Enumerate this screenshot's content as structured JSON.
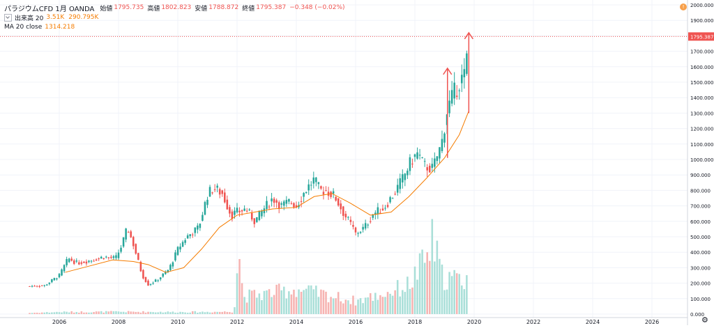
{
  "legend": {
    "title": "パラジウムCFD 1月 OANDA",
    "open_label": "始値",
    "open": "1795.735",
    "high_label": "高値",
    "high": "1802.823",
    "low_label": "安値",
    "low": "1788.872",
    "close_label": "終値",
    "close": "1795.387",
    "change": "−0.348 (−0.02%)",
    "volume_label": "出来高 20",
    "volume_value": "3.51K",
    "volume_ma": "290.795K",
    "ma_label": "MA 20 close",
    "ma_value": "1314.218"
  },
  "badges": {
    "info": "!"
  },
  "last_price_label": "1795.387",
  "colors": {
    "up": "#26a69a",
    "down": "#ef5350",
    "ma": "#f57c00",
    "vol_up": "#a9dfd8",
    "vol_down": "#f6b3b1",
    "arrow": "#ef5350",
    "grid": "#f0f3fa",
    "axis_text": "#131722"
  },
  "chart_data": {
    "type": "candlestick",
    "y_axis": {
      "min": 0,
      "max": 2000,
      "ticks": [
        "2000.000",
        "1900.000",
        "1800.000",
        "1700.000",
        "1600.000",
        "1500.000",
        "1400.000",
        "1300.000",
        "1200.000",
        "1100.000",
        "1000.000",
        "900.000",
        "800.000",
        "700.000",
        "600.000",
        "500.000",
        "400.000",
        "300.000",
        "200.000",
        "100.000",
        "0.000"
      ]
    },
    "x_axis": {
      "min": 2004,
      "max": 2027.2,
      "ticks": [
        "2006",
        "2008",
        "2010",
        "2012",
        "2014",
        "2016",
        "2018",
        "2020",
        "2022",
        "2024",
        "2026"
      ]
    },
    "price_anchors": [
      [
        2005.0,
        180
      ],
      [
        2005.5,
        185
      ],
      [
        2006.0,
        250
      ],
      [
        2006.3,
        360
      ],
      [
        2006.6,
        330
      ],
      [
        2007.0,
        345
      ],
      [
        2007.5,
        370
      ],
      [
        2007.9,
        360
      ],
      [
        2008.1,
        440
      ],
      [
        2008.3,
        560
      ],
      [
        2008.5,
        450
      ],
      [
        2008.8,
        250
      ],
      [
        2009.0,
        190
      ],
      [
        2009.3,
        220
      ],
      [
        2009.7,
        290
      ],
      [
        2010.0,
        420
      ],
      [
        2010.3,
        500
      ],
      [
        2010.7,
        560
      ],
      [
        2011.0,
        770
      ],
      [
        2011.2,
        820
      ],
      [
        2011.5,
        780
      ],
      [
        2011.8,
        640
      ],
      [
        2012.0,
        660
      ],
      [
        2012.3,
        680
      ],
      [
        2012.6,
        600
      ],
      [
        2012.9,
        680
      ],
      [
        2013.2,
        750
      ],
      [
        2013.5,
        700
      ],
      [
        2013.8,
        730
      ],
      [
        2014.0,
        700
      ],
      [
        2014.3,
        800
      ],
      [
        2014.6,
        870
      ],
      [
        2014.8,
        800
      ],
      [
        2015.0,
        800
      ],
      [
        2015.3,
        760
      ],
      [
        2015.6,
        650
      ],
      [
        2015.9,
        560
      ],
      [
        2016.0,
        520
      ],
      [
        2016.3,
        560
      ],
      [
        2016.6,
        650
      ],
      [
        2016.9,
        680
      ],
      [
        2017.0,
        700
      ],
      [
        2017.3,
        780
      ],
      [
        2017.6,
        880
      ],
      [
        2017.9,
        1000
      ],
      [
        2018.1,
        1040
      ],
      [
        2018.3,
        960
      ],
      [
        2018.6,
        940
      ],
      [
        2018.9,
        1100
      ],
      [
        2019.1,
        1330
      ],
      [
        2019.3,
        1420
      ],
      [
        2019.5,
        1500
      ],
      [
        2019.7,
        1550
      ],
      [
        2019.82,
        1790
      ]
    ],
    "ma20_anchors": [
      [
        2006.2,
        270
      ],
      [
        2007.0,
        310
      ],
      [
        2007.8,
        350
      ],
      [
        2008.5,
        340
      ],
      [
        2009.0,
        320
      ],
      [
        2009.6,
        270
      ],
      [
        2010.2,
        300
      ],
      [
        2010.8,
        420
      ],
      [
        2011.4,
        560
      ],
      [
        2012.0,
        640
      ],
      [
        2012.6,
        660
      ],
      [
        2013.2,
        680
      ],
      [
        2014.0,
        690
      ],
      [
        2014.6,
        760
      ],
      [
        2015.2,
        780
      ],
      [
        2015.8,
        720
      ],
      [
        2016.5,
        640
      ],
      [
        2017.2,
        660
      ],
      [
        2017.8,
        760
      ],
      [
        2018.4,
        880
      ],
      [
        2019.0,
        1010
      ],
      [
        2019.5,
        1160
      ],
      [
        2019.82,
        1314
      ]
    ],
    "volume_anchors": [
      [
        2005.0,
        8
      ],
      [
        2006.0,
        14
      ],
      [
        2008.0,
        16
      ],
      [
        2010.0,
        14
      ],
      [
        2011.9,
        16
      ],
      [
        2012.05,
        480
      ],
      [
        2012.2,
        120
      ],
      [
        2013.0,
        140
      ],
      [
        2014.0,
        170
      ],
      [
        2015.0,
        130
      ],
      [
        2016.0,
        90
      ],
      [
        2017.0,
        140
      ],
      [
        2017.8,
        200
      ],
      [
        2018.4,
        380
      ],
      [
        2018.6,
        500
      ],
      [
        2018.9,
        260
      ],
      [
        2019.5,
        230
      ],
      [
        2019.75,
        250
      ]
    ],
    "arrows": [
      {
        "x": 2019.1,
        "from": 1010,
        "to": 1590
      },
      {
        "x": 2019.82,
        "from": 1300,
        "to": 1820
      }
    ],
    "last_price": 1795.387
  }
}
